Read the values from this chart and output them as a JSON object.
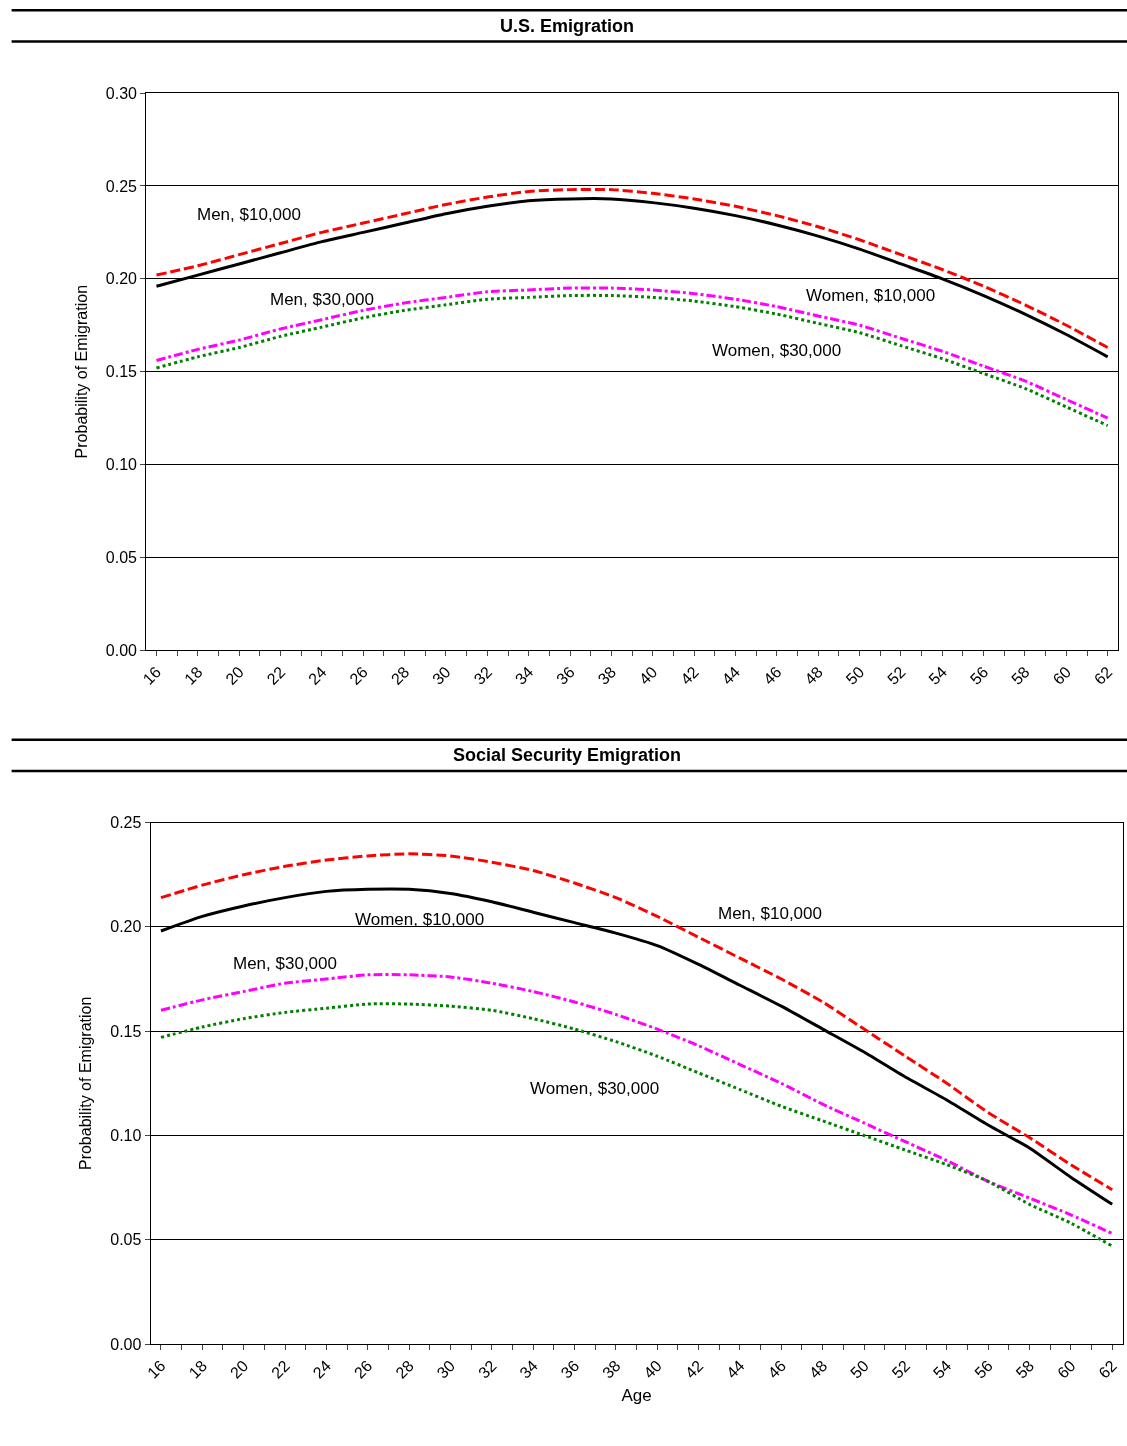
{
  "chart_data": [
    {
      "type": "line",
      "title": "U.S. Emigration",
      "ylabel": "Probability of Emigration",
      "x": [
        16,
        18,
        20,
        22,
        24,
        26,
        28,
        30,
        32,
        34,
        36,
        38,
        40,
        42,
        44,
        46,
        48,
        50,
        52,
        54,
        56,
        58,
        60,
        62
      ],
      "series": [
        {
          "name": "Men, $10,000",
          "color": "#ff0000",
          "line_style": "dashed",
          "values": [
            0.202,
            0.207,
            0.213,
            0.219,
            0.225,
            0.23,
            0.235,
            0.24,
            0.244,
            0.247,
            0.248,
            0.248,
            0.246,
            0.243,
            0.239,
            0.234,
            0.228,
            0.221,
            0.213,
            0.205,
            0.196,
            0.186,
            0.175,
            0.163
          ]
        },
        {
          "name": "Women, $10,000",
          "color": "#000000",
          "line_style": "solid",
          "values": [
            0.196,
            0.202,
            0.208,
            0.214,
            0.22,
            0.225,
            0.23,
            0.235,
            0.239,
            0.242,
            0.243,
            0.243,
            0.241,
            0.238,
            0.234,
            0.229,
            0.223,
            0.216,
            0.208,
            0.2,
            0.191,
            0.181,
            0.17,
            0.158
          ]
        },
        {
          "name": "Men, $30,000",
          "color": "#ff00ff",
          "line_style": "dashdot",
          "values": [
            0.156,
            0.162,
            0.167,
            0.173,
            0.178,
            0.183,
            0.187,
            0.19,
            0.193,
            0.194,
            0.195,
            0.195,
            0.194,
            0.192,
            0.189,
            0.185,
            0.18,
            0.175,
            0.168,
            0.161,
            0.153,
            0.145,
            0.135,
            0.125
          ]
        },
        {
          "name": "Women, $30,000",
          "color": "#008000",
          "line_style": "dotted",
          "values": [
            0.152,
            0.158,
            0.163,
            0.169,
            0.174,
            0.179,
            0.183,
            0.186,
            0.189,
            0.19,
            0.191,
            0.191,
            0.19,
            0.188,
            0.185,
            0.181,
            0.176,
            0.171,
            0.164,
            0.157,
            0.149,
            0.141,
            0.131,
            0.121
          ]
        }
      ],
      "xlim": [
        15.5,
        62.5
      ],
      "xticks": [
        16,
        {
          "value": 17,
          "label": null
        },
        18,
        {
          "value": 19,
          "label": null
        },
        20,
        {
          "value": 21,
          "label": null
        },
        22,
        {
          "value": 23,
          "label": null
        },
        24,
        {
          "value": 25,
          "label": null
        },
        26,
        {
          "value": 27,
          "label": null
        },
        28,
        {
          "value": 29,
          "label": null
        },
        30,
        {
          "value": 31,
          "label": null
        },
        32,
        {
          "value": 33,
          "label": null
        },
        34,
        {
          "value": 35,
          "label": null
        },
        36,
        {
          "value": 37,
          "label": null
        },
        38,
        {
          "value": 39,
          "label": null
        },
        40,
        {
          "value": 41,
          "label": null
        },
        42,
        {
          "value": 43,
          "label": null
        },
        44,
        {
          "value": 45,
          "label": null
        },
        46,
        {
          "value": 47,
          "label": null
        },
        48,
        {
          "value": 49,
          "label": null
        },
        50,
        {
          "value": 51,
          "label": null
        },
        52,
        {
          "value": 53,
          "label": null
        },
        54,
        {
          "value": 55,
          "label": null
        },
        56,
        {
          "value": 57,
          "label": null
        },
        58,
        {
          "value": 59,
          "label": null
        },
        60,
        {
          "value": 61,
          "label": null
        },
        62
      ],
      "ylim": [
        0,
        0.3
      ],
      "yticks": [
        {
          "value": 0,
          "label": "0.00"
        },
        {
          "value": 0.05,
          "label": "0.05"
        },
        {
          "value": 0.1,
          "label": "0.10"
        },
        {
          "value": 0.15,
          "label": "0.15"
        },
        {
          "value": 0.2,
          "label": "0.20"
        },
        {
          "value": 0.25,
          "label": "0.25"
        },
        {
          "value": 0.3,
          "label": "0.30"
        }
      ],
      "grid": "y",
      "legend": false
    },
    {
      "type": "line",
      "title": "Social Security Emigration",
      "xlabel": "Age",
      "ylabel": "Probability of Emigration",
      "x": [
        16,
        18,
        20,
        22,
        24,
        26,
        28,
        30,
        32,
        34,
        36,
        38,
        40,
        42,
        44,
        46,
        48,
        50,
        52,
        54,
        56,
        58,
        60,
        62
      ],
      "series": [
        {
          "name": "Men, $10,000",
          "color": "#ff0000",
          "line_style": "dashed",
          "values": [
            0.214,
            0.22,
            0.225,
            0.229,
            0.232,
            0.234,
            0.235,
            0.234,
            0.231,
            0.227,
            0.221,
            0.214,
            0.205,
            0.195,
            0.185,
            0.175,
            0.164,
            0.151,
            0.138,
            0.125,
            0.111,
            0.099,
            0.086,
            0.074
          ]
        },
        {
          "name": "Women, $10,000",
          "color": "#000000",
          "line_style": "solid",
          "values": [
            0.198,
            0.205,
            0.21,
            0.214,
            0.217,
            0.218,
            0.218,
            0.216,
            0.212,
            0.207,
            0.202,
            0.197,
            0.191,
            0.182,
            0.172,
            0.162,
            0.151,
            0.14,
            0.128,
            0.117,
            0.105,
            0.094,
            0.08,
            0.067
          ]
        },
        {
          "name": "Men, $30,000",
          "color": "#ff00ff",
          "line_style": "dashdot",
          "values": [
            0.16,
            0.165,
            0.169,
            0.173,
            0.175,
            0.177,
            0.177,
            0.176,
            0.173,
            0.169,
            0.164,
            0.158,
            0.151,
            0.143,
            0.134,
            0.125,
            0.115,
            0.106,
            0.097,
            0.088,
            0.078,
            0.07,
            0.062,
            0.053
          ]
        },
        {
          "name": "Women, $30,000",
          "color": "#008000",
          "line_style": "dotted",
          "values": [
            0.147,
            0.152,
            0.156,
            0.159,
            0.161,
            0.163,
            0.163,
            0.162,
            0.16,
            0.156,
            0.151,
            0.145,
            0.138,
            0.13,
            0.122,
            0.114,
            0.107,
            0.1,
            0.093,
            0.086,
            0.078,
            0.067,
            0.058,
            0.047
          ]
        }
      ],
      "xlim": [
        15.5,
        62.5
      ],
      "xticks": [
        16,
        {
          "value": 17,
          "label": null
        },
        18,
        {
          "value": 19,
          "label": null
        },
        20,
        {
          "value": 21,
          "label": null
        },
        22,
        {
          "value": 23,
          "label": null
        },
        24,
        {
          "value": 25,
          "label": null
        },
        26,
        {
          "value": 27,
          "label": null
        },
        28,
        {
          "value": 29,
          "label": null
        },
        30,
        {
          "value": 31,
          "label": null
        },
        32,
        {
          "value": 33,
          "label": null
        },
        34,
        {
          "value": 35,
          "label": null
        },
        36,
        {
          "value": 37,
          "label": null
        },
        38,
        {
          "value": 39,
          "label": null
        },
        40,
        {
          "value": 41,
          "label": null
        },
        42,
        {
          "value": 43,
          "label": null
        },
        44,
        {
          "value": 45,
          "label": null
        },
        46,
        {
          "value": 47,
          "label": null
        },
        48,
        {
          "value": 49,
          "label": null
        },
        50,
        {
          "value": 51,
          "label": null
        },
        52,
        {
          "value": 53,
          "label": null
        },
        54,
        {
          "value": 55,
          "label": null
        },
        56,
        {
          "value": 57,
          "label": null
        },
        58,
        {
          "value": 59,
          "label": null
        },
        60,
        {
          "value": 61,
          "label": null
        },
        62
      ],
      "ylim": [
        0,
        0.25
      ],
      "yticks": [
        {
          "value": 0,
          "label": "0.00"
        },
        {
          "value": 0.05,
          "label": "0.05"
        },
        {
          "value": 0.1,
          "label": "0.10"
        },
        {
          "value": 0.15,
          "label": "0.15"
        },
        {
          "value": 0.2,
          "label": "0.20"
        },
        {
          "value": 0.25,
          "label": "0.25"
        }
      ],
      "grid": "y",
      "legend": false
    }
  ]
}
